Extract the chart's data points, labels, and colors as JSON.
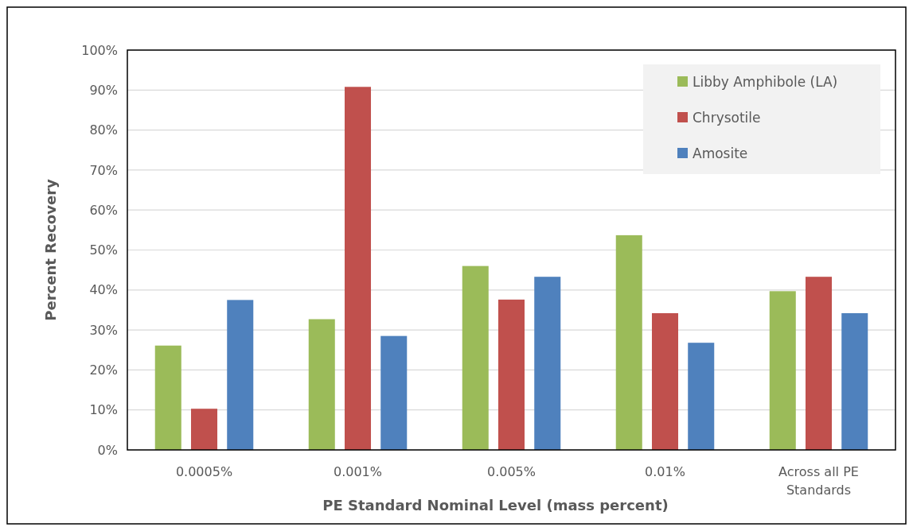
{
  "chart_data": {
    "type": "bar",
    "xlabel": "PE Standard Nominal Level (mass percent)",
    "ylabel": "Percent Recovery",
    "categories": [
      "0.0005%",
      "0.001%",
      "0.005%",
      "0.01%",
      "Across all PE Standards"
    ],
    "series": [
      {
        "name": "Libby Amphibole (LA)",
        "color": "#9bbb59",
        "values": [
          26.1,
          32.7,
          46.0,
          53.7,
          39.7
        ]
      },
      {
        "name": "Chrysotile",
        "color": "#c0504d",
        "values": [
          10.3,
          90.8,
          37.6,
          34.2,
          43.3
        ]
      },
      {
        "name": "Amosite",
        "color": "#4f81bd",
        "values": [
          37.5,
          28.5,
          43.3,
          26.8,
          34.2
        ]
      }
    ],
    "ylim": [
      0,
      100
    ],
    "yticks": [
      {
        "value": 0,
        "label": "0%"
      },
      {
        "value": 10,
        "label": "10%"
      },
      {
        "value": 20,
        "label": "20%"
      },
      {
        "value": 30,
        "label": "30%"
      },
      {
        "value": 40,
        "label": "40%"
      },
      {
        "value": 50,
        "label": "50%"
      },
      {
        "value": 60,
        "label": "60%"
      },
      {
        "value": 70,
        "label": "70%"
      },
      {
        "value": 80,
        "label": "80%"
      },
      {
        "value": 90,
        "label": "90%"
      },
      {
        "value": 100,
        "label": "100%"
      }
    ],
    "grid": "y",
    "legend": "top right"
  }
}
